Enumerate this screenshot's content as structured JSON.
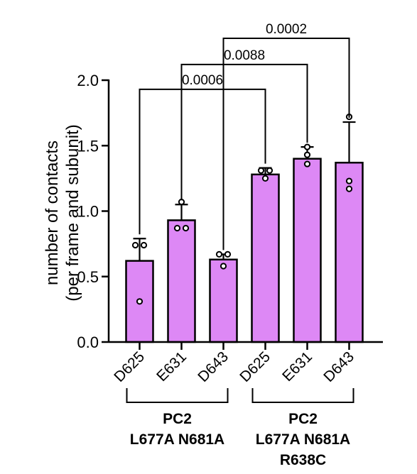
{
  "chart_data": {
    "type": "bar",
    "ylabel_line1": "number of contacts",
    "ylabel_line2": "(per frame and subunit)",
    "ylim": [
      0,
      2.0
    ],
    "yticks": [
      "0.0",
      "0.5",
      "1.0",
      "1.5",
      "2.0"
    ],
    "ytick_values": [
      0,
      0.5,
      1.0,
      1.5,
      2.0
    ],
    "bar_color": "#dd88f5",
    "categories": [
      "D625",
      "E631",
      "D643",
      "D625",
      "E631",
      "D643"
    ],
    "values": [
      0.62,
      0.93,
      0.63,
      1.28,
      1.4,
      1.37
    ],
    "errors": [
      0.17,
      0.12,
      0.04,
      0.05,
      0.09,
      0.31
    ],
    "points": [
      [
        0.31,
        0.74,
        0.74
      ],
      [
        0.87,
        0.87,
        1.07
      ],
      [
        0.58,
        0.67,
        0.67
      ],
      [
        1.25,
        1.31,
        1.31
      ],
      [
        1.36,
        1.43,
        1.49
      ],
      [
        1.17,
        1.23,
        1.72
      ]
    ],
    "groups": [
      {
        "lines": [
          "PC2",
          "L677A N681A"
        ],
        "from": 0,
        "to": 2
      },
      {
        "lines": [
          "PC2",
          "L677A N681A",
          "R638C"
        ],
        "from": 3,
        "to": 5
      }
    ],
    "comparisons": [
      {
        "from": 0,
        "to": 3,
        "label": "0.0006",
        "level": 1.93
      },
      {
        "from": 1,
        "to": 4,
        "label": "0.0088",
        "level": 2.12
      },
      {
        "from": 2,
        "to": 5,
        "label": "0.0002",
        "level": 2.32
      }
    ]
  }
}
